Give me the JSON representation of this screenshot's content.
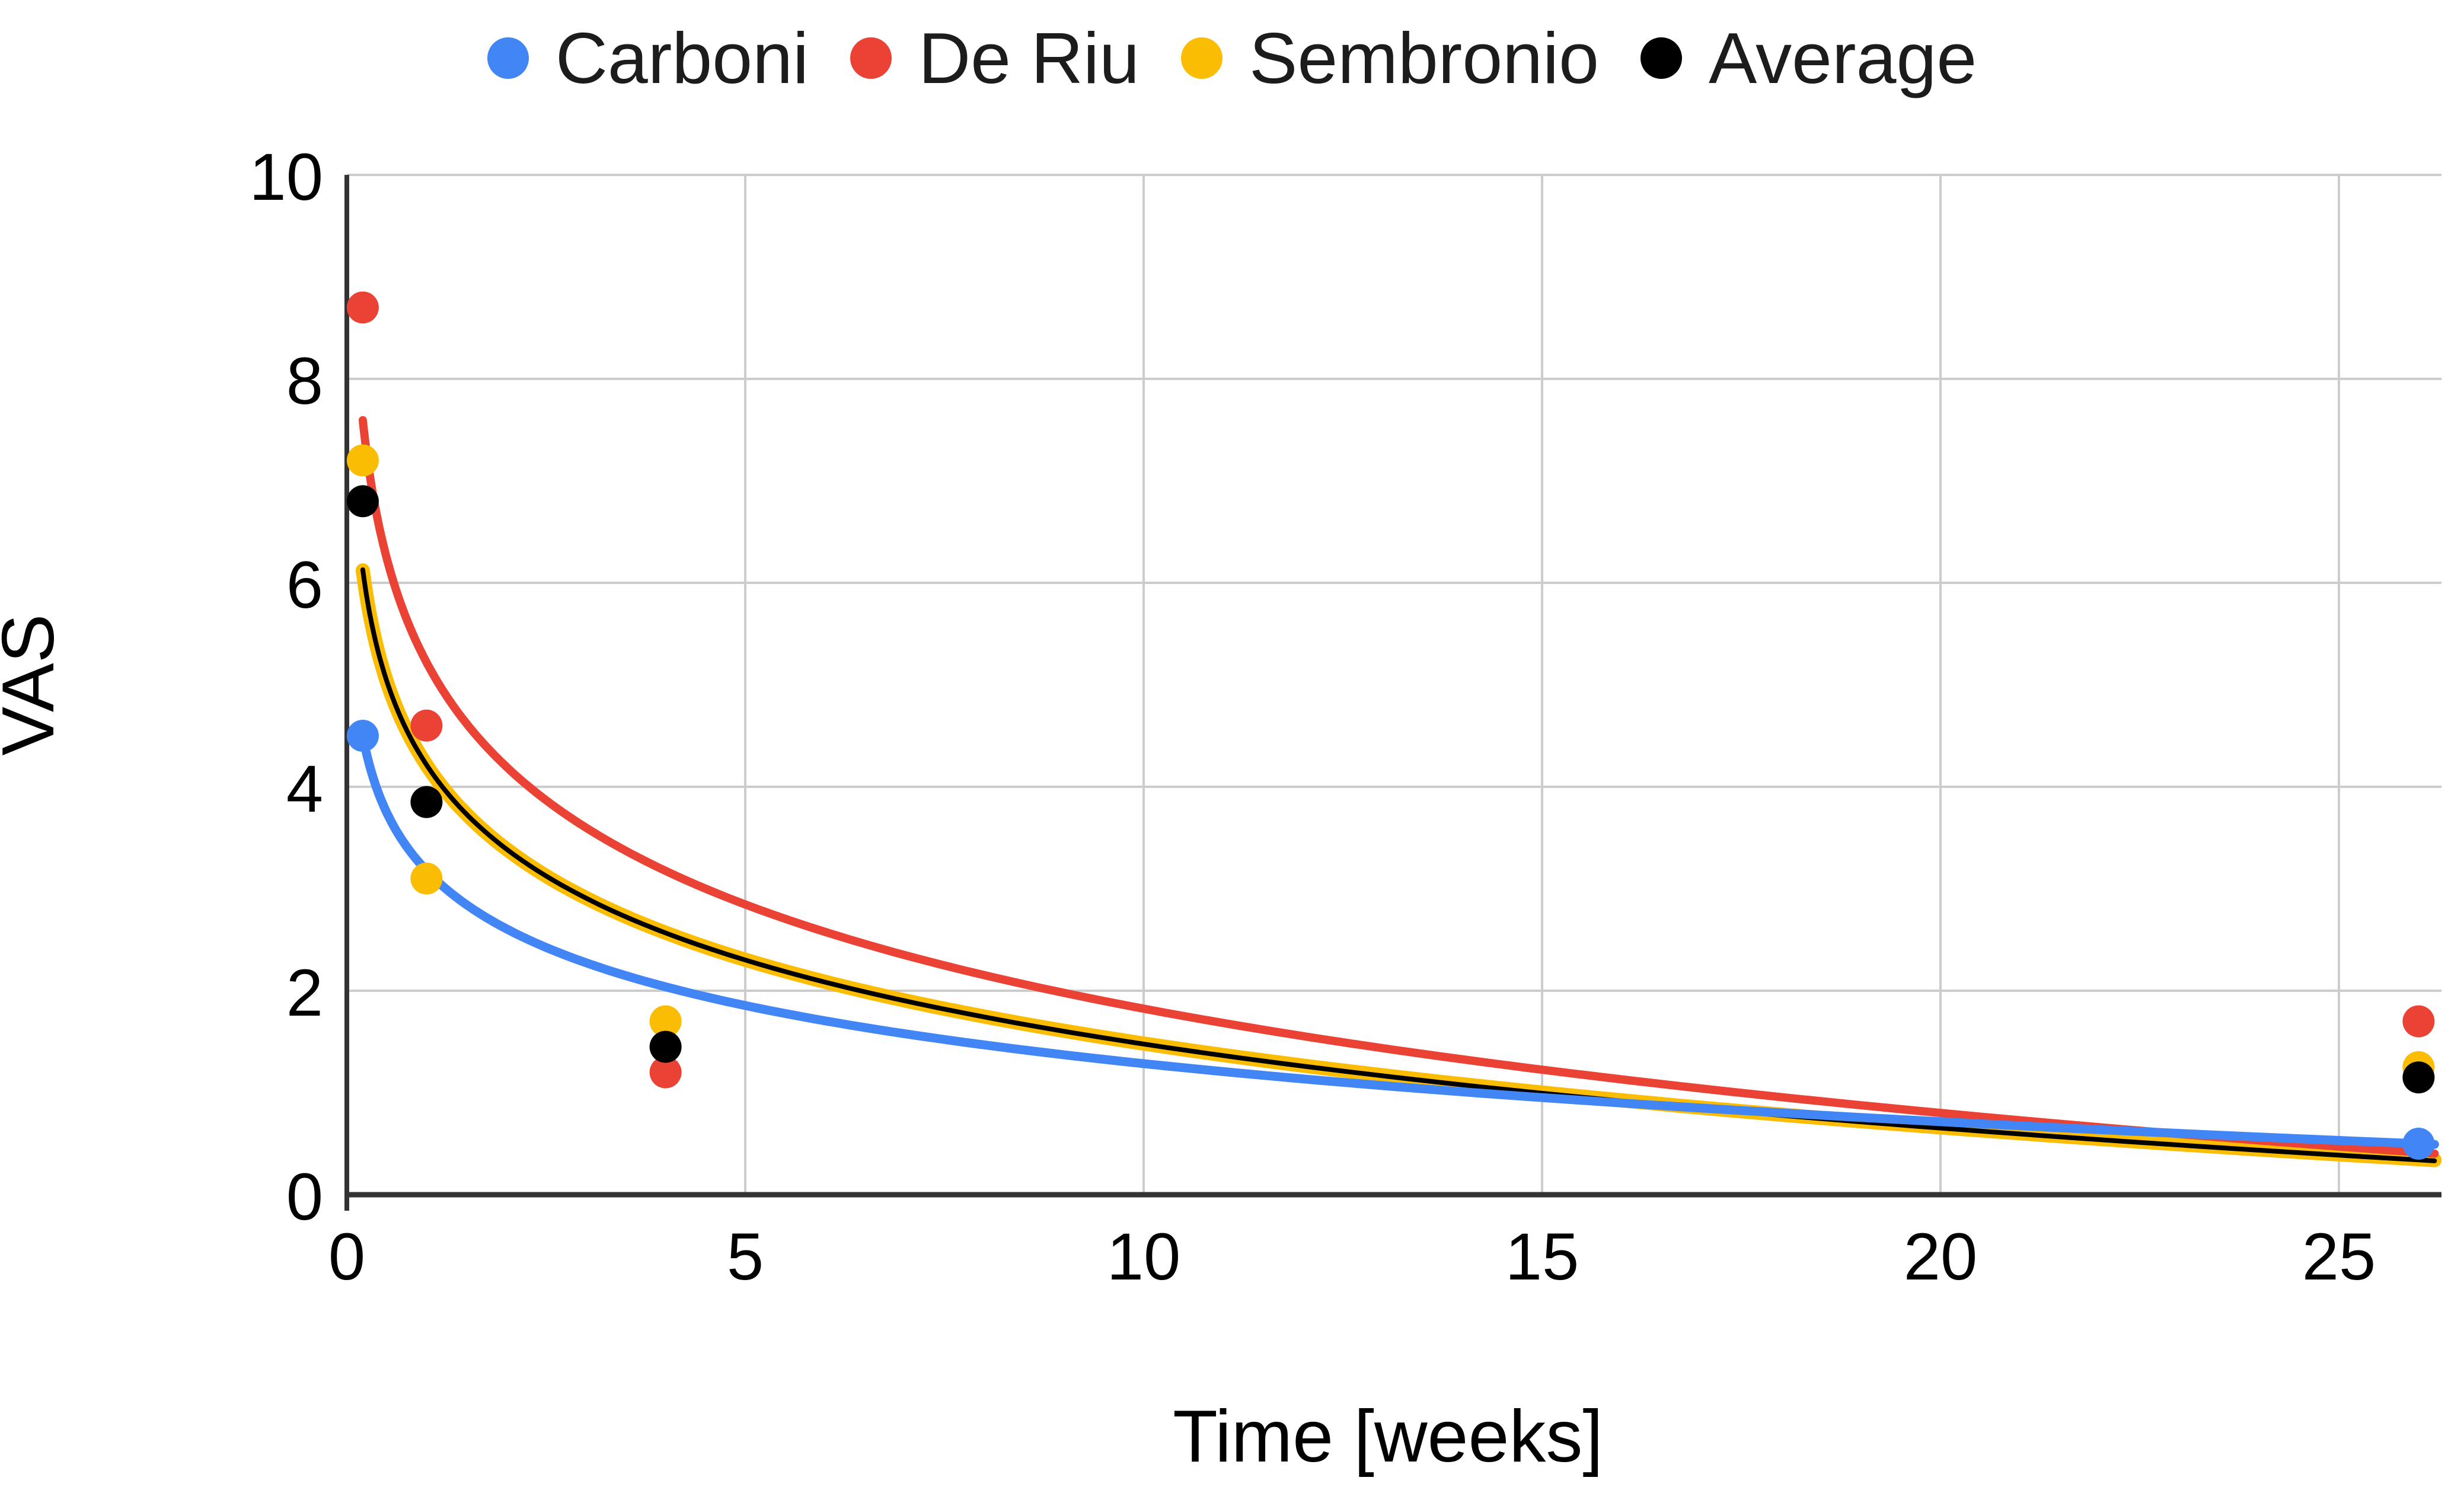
{
  "chart_data": {
    "type": "scatter",
    "title": "",
    "xlabel": "Time [weeks]",
    "ylabel": "VAS",
    "x_ticks": [
      "0",
      "5",
      "10",
      "15",
      "20",
      "25"
    ],
    "y_ticks": [
      "0",
      "2",
      "4",
      "6",
      "8",
      "10"
    ],
    "xlim": [
      0,
      26.3
    ],
    "ylim": [
      0,
      10
    ],
    "grid": "on",
    "legend_position": "top",
    "trend_x_range": [
      0.2,
      26.2
    ],
    "series": [
      {
        "name": "Carboni",
        "color": "#4285F4",
        "points": [
          [
            0.2,
            4.5
          ],
          [
            26,
            0.5
          ]
        ],
        "trendline": {
          "type": "logarithmic",
          "a": 3.178,
          "b": -0.822
        }
      },
      {
        "name": "De Riu",
        "color": "#EA4335",
        "points": [
          [
            0.2,
            8.7
          ],
          [
            1,
            4.6
          ],
          [
            4,
            1.2
          ],
          [
            26,
            1.7
          ]
        ],
        "trendline": {
          "type": "logarithmic",
          "a": 5.22,
          "b": -1.475
        }
      },
      {
        "name": "Sembronio",
        "color": "#FBBC04",
        "points": [
          [
            0.2,
            7.2
          ],
          [
            1,
            3.1
          ],
          [
            4,
            1.7
          ],
          [
            26,
            1.25
          ]
        ],
        "trendline": {
          "type": "logarithmic",
          "a": 4.213,
          "b": -1.186
        }
      },
      {
        "name": "Average",
        "color": "#000000",
        "points": [
          [
            0.2,
            6.8
          ],
          [
            1,
            3.85
          ],
          [
            4,
            1.45
          ],
          [
            26,
            1.15
          ]
        ],
        "trendline": {
          "type": "logarithmic",
          "a": 4.215,
          "b": -1.189
        }
      }
    ]
  }
}
